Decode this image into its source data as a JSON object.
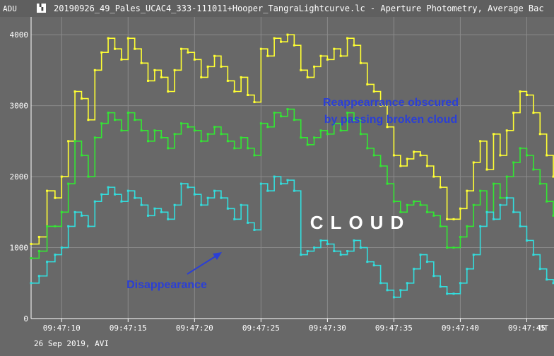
{
  "window": {
    "title": "20190926_49_Pales_UCAC4_333-111011+Hooper_TangraLightcurve.lc - Aperture Photometry, Average Bac",
    "icon": "tangra-app-icon"
  },
  "footer": "26 Sep 2019, AVI",
  "colors": {
    "background": "#686868",
    "gridline": "#8a8a8a",
    "axis_text": "#ffffff",
    "yellow": "#ffff33",
    "green": "#33e633",
    "cyan": "#33dddd",
    "annotation": "#2b3fd6",
    "cloud_text": "#ffffff"
  },
  "chart_data": {
    "type": "line",
    "title": "",
    "ylabel": "ADU",
    "xlabel": "",
    "x_unit": "UT",
    "ylim": [
      0,
      4250
    ],
    "xlim": [
      7.7,
      47.05
    ],
    "y_ticks": [
      0,
      1000,
      2000,
      3000,
      4000
    ],
    "y_tick_labels": [
      "0",
      "1000",
      "2000",
      "3000",
      "4000"
    ],
    "x_ticks": [
      10,
      15,
      20,
      25,
      30,
      35,
      40,
      45
    ],
    "x_tick_labels": [
      "09:47:10",
      "09:47:15",
      "09:47:20",
      "09:47:25",
      "09:47:30",
      "09:47:35",
      "09:47:40",
      "09:47:45"
    ],
    "grid": true,
    "series": [
      {
        "color": "#ffff33",
        "x": [
          7.7,
          8.3,
          8.9,
          9.5,
          10.0,
          10.5,
          11.0,
          11.5,
          12.0,
          12.5,
          13.0,
          13.5,
          14.0,
          14.5,
          15.0,
          15.5,
          16.0,
          16.5,
          17.0,
          17.5,
          18.0,
          18.5,
          19.0,
          19.5,
          20.0,
          20.5,
          21.0,
          21.5,
          22.0,
          22.5,
          23.0,
          23.5,
          24.0,
          24.5,
          25.0,
          25.5,
          26.0,
          26.5,
          27.0,
          27.5,
          28.0,
          28.5,
          29.0,
          29.5,
          30.0,
          30.5,
          31.0,
          31.5,
          32.0,
          32.5,
          33.0,
          33.5,
          34.0,
          34.5,
          35.0,
          35.5,
          36.0,
          36.5,
          37.0,
          37.5,
          38.0,
          38.5,
          39.0,
          39.5,
          40.0,
          40.5,
          41.0,
          41.5,
          42.0,
          42.5,
          43.0,
          43.5,
          44.0,
          44.5,
          45.0,
          45.5,
          46.0,
          46.5,
          47.0
        ],
        "values": [
          1050,
          1150,
          1800,
          1700,
          2000,
          2500,
          3200,
          3100,
          2800,
          3500,
          3750,
          3950,
          3800,
          3650,
          3950,
          3800,
          3600,
          3350,
          3500,
          3400,
          3200,
          3500,
          3800,
          3750,
          3650,
          3400,
          3550,
          3700,
          3550,
          3350,
          3200,
          3400,
          3150,
          3050,
          3800,
          3700,
          3950,
          3900,
          4000,
          3850,
          3500,
          3400,
          3550,
          3700,
          3650,
          3800,
          3700,
          3950,
          3850,
          3600,
          3300,
          3200,
          3000,
          2700,
          2300,
          2150,
          2250,
          2350,
          2300,
          2150,
          2000,
          1850,
          1400,
          1400,
          1550,
          1800,
          2200,
          2500,
          2100,
          2600,
          2300,
          2650,
          2900,
          3200,
          3150,
          2900,
          2600,
          2300,
          2000
        ]
      },
      {
        "color": "#33e633",
        "x": [
          7.7,
          8.3,
          8.9,
          9.5,
          10.0,
          10.5,
          11.0,
          11.5,
          12.0,
          12.5,
          13.0,
          13.5,
          14.0,
          14.5,
          15.0,
          15.5,
          16.0,
          16.5,
          17.0,
          17.5,
          18.0,
          18.5,
          19.0,
          19.5,
          20.0,
          20.5,
          21.0,
          21.5,
          22.0,
          22.5,
          23.0,
          23.5,
          24.0,
          24.5,
          25.0,
          25.5,
          26.0,
          26.5,
          27.0,
          27.5,
          28.0,
          28.5,
          29.0,
          29.5,
          30.0,
          30.5,
          31.0,
          31.5,
          32.0,
          32.5,
          33.0,
          33.5,
          34.0,
          34.5,
          35.0,
          35.5,
          36.0,
          36.5,
          37.0,
          37.5,
          38.0,
          38.5,
          39.0,
          39.5,
          40.0,
          40.5,
          41.0,
          41.5,
          42.0,
          42.5,
          43.0,
          43.5,
          44.0,
          44.5,
          45.0,
          45.5,
          46.0,
          46.5,
          47.0
        ],
        "values": [
          850,
          950,
          1300,
          1300,
          1500,
          1900,
          2500,
          2300,
          2000,
          2550,
          2750,
          2900,
          2800,
          2650,
          2900,
          2800,
          2650,
          2500,
          2650,
          2550,
          2400,
          2600,
          2750,
          2700,
          2650,
          2500,
          2600,
          2700,
          2600,
          2500,
          2400,
          2550,
          2400,
          2300,
          2750,
          2700,
          2900,
          2850,
          2950,
          2800,
          2550,
          2450,
          2550,
          2650,
          2600,
          2750,
          2650,
          2900,
          2800,
          2600,
          2400,
          2300,
          2150,
          1900,
          1650,
          1500,
          1600,
          1650,
          1600,
          1500,
          1450,
          1300,
          1000,
          1000,
          1150,
          1300,
          1600,
          1800,
          1500,
          1900,
          1700,
          2000,
          2200,
          2400,
          2300,
          2100,
          1900,
          1650,
          1450
        ]
      },
      {
        "color": "#33dddd",
        "x": [
          7.7,
          8.3,
          8.9,
          9.5,
          10.0,
          10.5,
          11.0,
          11.5,
          12.0,
          12.5,
          13.0,
          13.5,
          14.0,
          14.5,
          15.0,
          15.5,
          16.0,
          16.5,
          17.0,
          17.5,
          18.0,
          18.5,
          19.0,
          19.5,
          20.0,
          20.5,
          21.0,
          21.5,
          22.0,
          22.5,
          23.0,
          23.5,
          24.0,
          24.5,
          25.0,
          25.5,
          26.0,
          26.5,
          27.0,
          27.5,
          28.0,
          28.5,
          29.0,
          29.5,
          30.0,
          30.5,
          31.0,
          31.5,
          32.0,
          32.5,
          33.0,
          33.5,
          34.0,
          34.5,
          35.0,
          35.5,
          36.0,
          36.5,
          37.0,
          37.5,
          38.0,
          38.5,
          39.0,
          39.5,
          40.0,
          40.5,
          41.0,
          41.5,
          42.0,
          42.5,
          43.0,
          43.5,
          44.0,
          44.5,
          45.0,
          45.5,
          46.0,
          46.5,
          47.0
        ],
        "values": [
          500,
          600,
          800,
          900,
          1000,
          1300,
          1500,
          1450,
          1300,
          1650,
          1750,
          1850,
          1750,
          1650,
          1800,
          1700,
          1600,
          1450,
          1550,
          1500,
          1400,
          1600,
          1900,
          1850,
          1750,
          1600,
          1700,
          1800,
          1700,
          1550,
          1400,
          1600,
          1350,
          1250,
          1900,
          1800,
          2000,
          1900,
          1950,
          1800,
          900,
          950,
          1000,
          1100,
          1050,
          950,
          900,
          950,
          1100,
          1000,
          800,
          750,
          500,
          400,
          300,
          400,
          500,
          700,
          900,
          800,
          600,
          450,
          350,
          350,
          500,
          700,
          900,
          1300,
          1500,
          1400,
          1600,
          1700,
          1500,
          1300,
          1100,
          900,
          700,
          550,
          500
        ]
      }
    ],
    "annotations": [
      {
        "text": "Reappearrance obscured\nby passing broken cloud",
        "color": "#2b3fd6"
      },
      {
        "text": "Disappearance",
        "color": "#2b3fd6"
      },
      {
        "text": "CLOUD",
        "color": "#ffffff"
      }
    ]
  }
}
